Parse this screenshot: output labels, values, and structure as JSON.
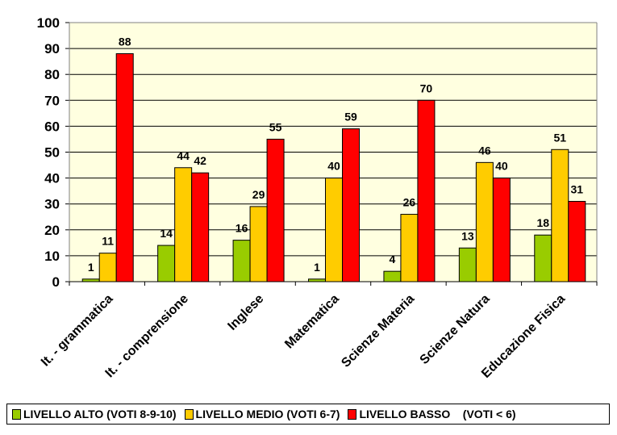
{
  "chart_data": {
    "type": "bar",
    "categories": [
      "It. - grammatica",
      "It. - comprensione",
      "Inglese",
      "Matematica",
      "Scienze Materia",
      "Scienze Natura",
      "Educazione Fisica"
    ],
    "series": [
      {
        "name": "LIVELLO ALTO (VOTI 8-9-10)",
        "color": "#99CC00",
        "values": [
          1,
          14,
          16,
          1,
          4,
          13,
          18
        ]
      },
      {
        "name": "LIVELLO MEDIO (VOTI 6-7)",
        "color": "#FFCC00",
        "values": [
          11,
          44,
          29,
          40,
          26,
          46,
          51
        ]
      },
      {
        "name": "LIVELLO BASSO    (VOTI < 6)",
        "color": "#FF0000",
        "values": [
          88,
          42,
          55,
          59,
          70,
          40,
          31
        ]
      }
    ],
    "ylim": [
      0,
      100
    ],
    "yticks": [
      "0",
      "10",
      "20",
      "30",
      "40",
      "50",
      "60",
      "70",
      "80",
      "90",
      "100"
    ],
    "grid": true,
    "plot_background": "#FFFFE0",
    "legend_position": "bottom"
  }
}
